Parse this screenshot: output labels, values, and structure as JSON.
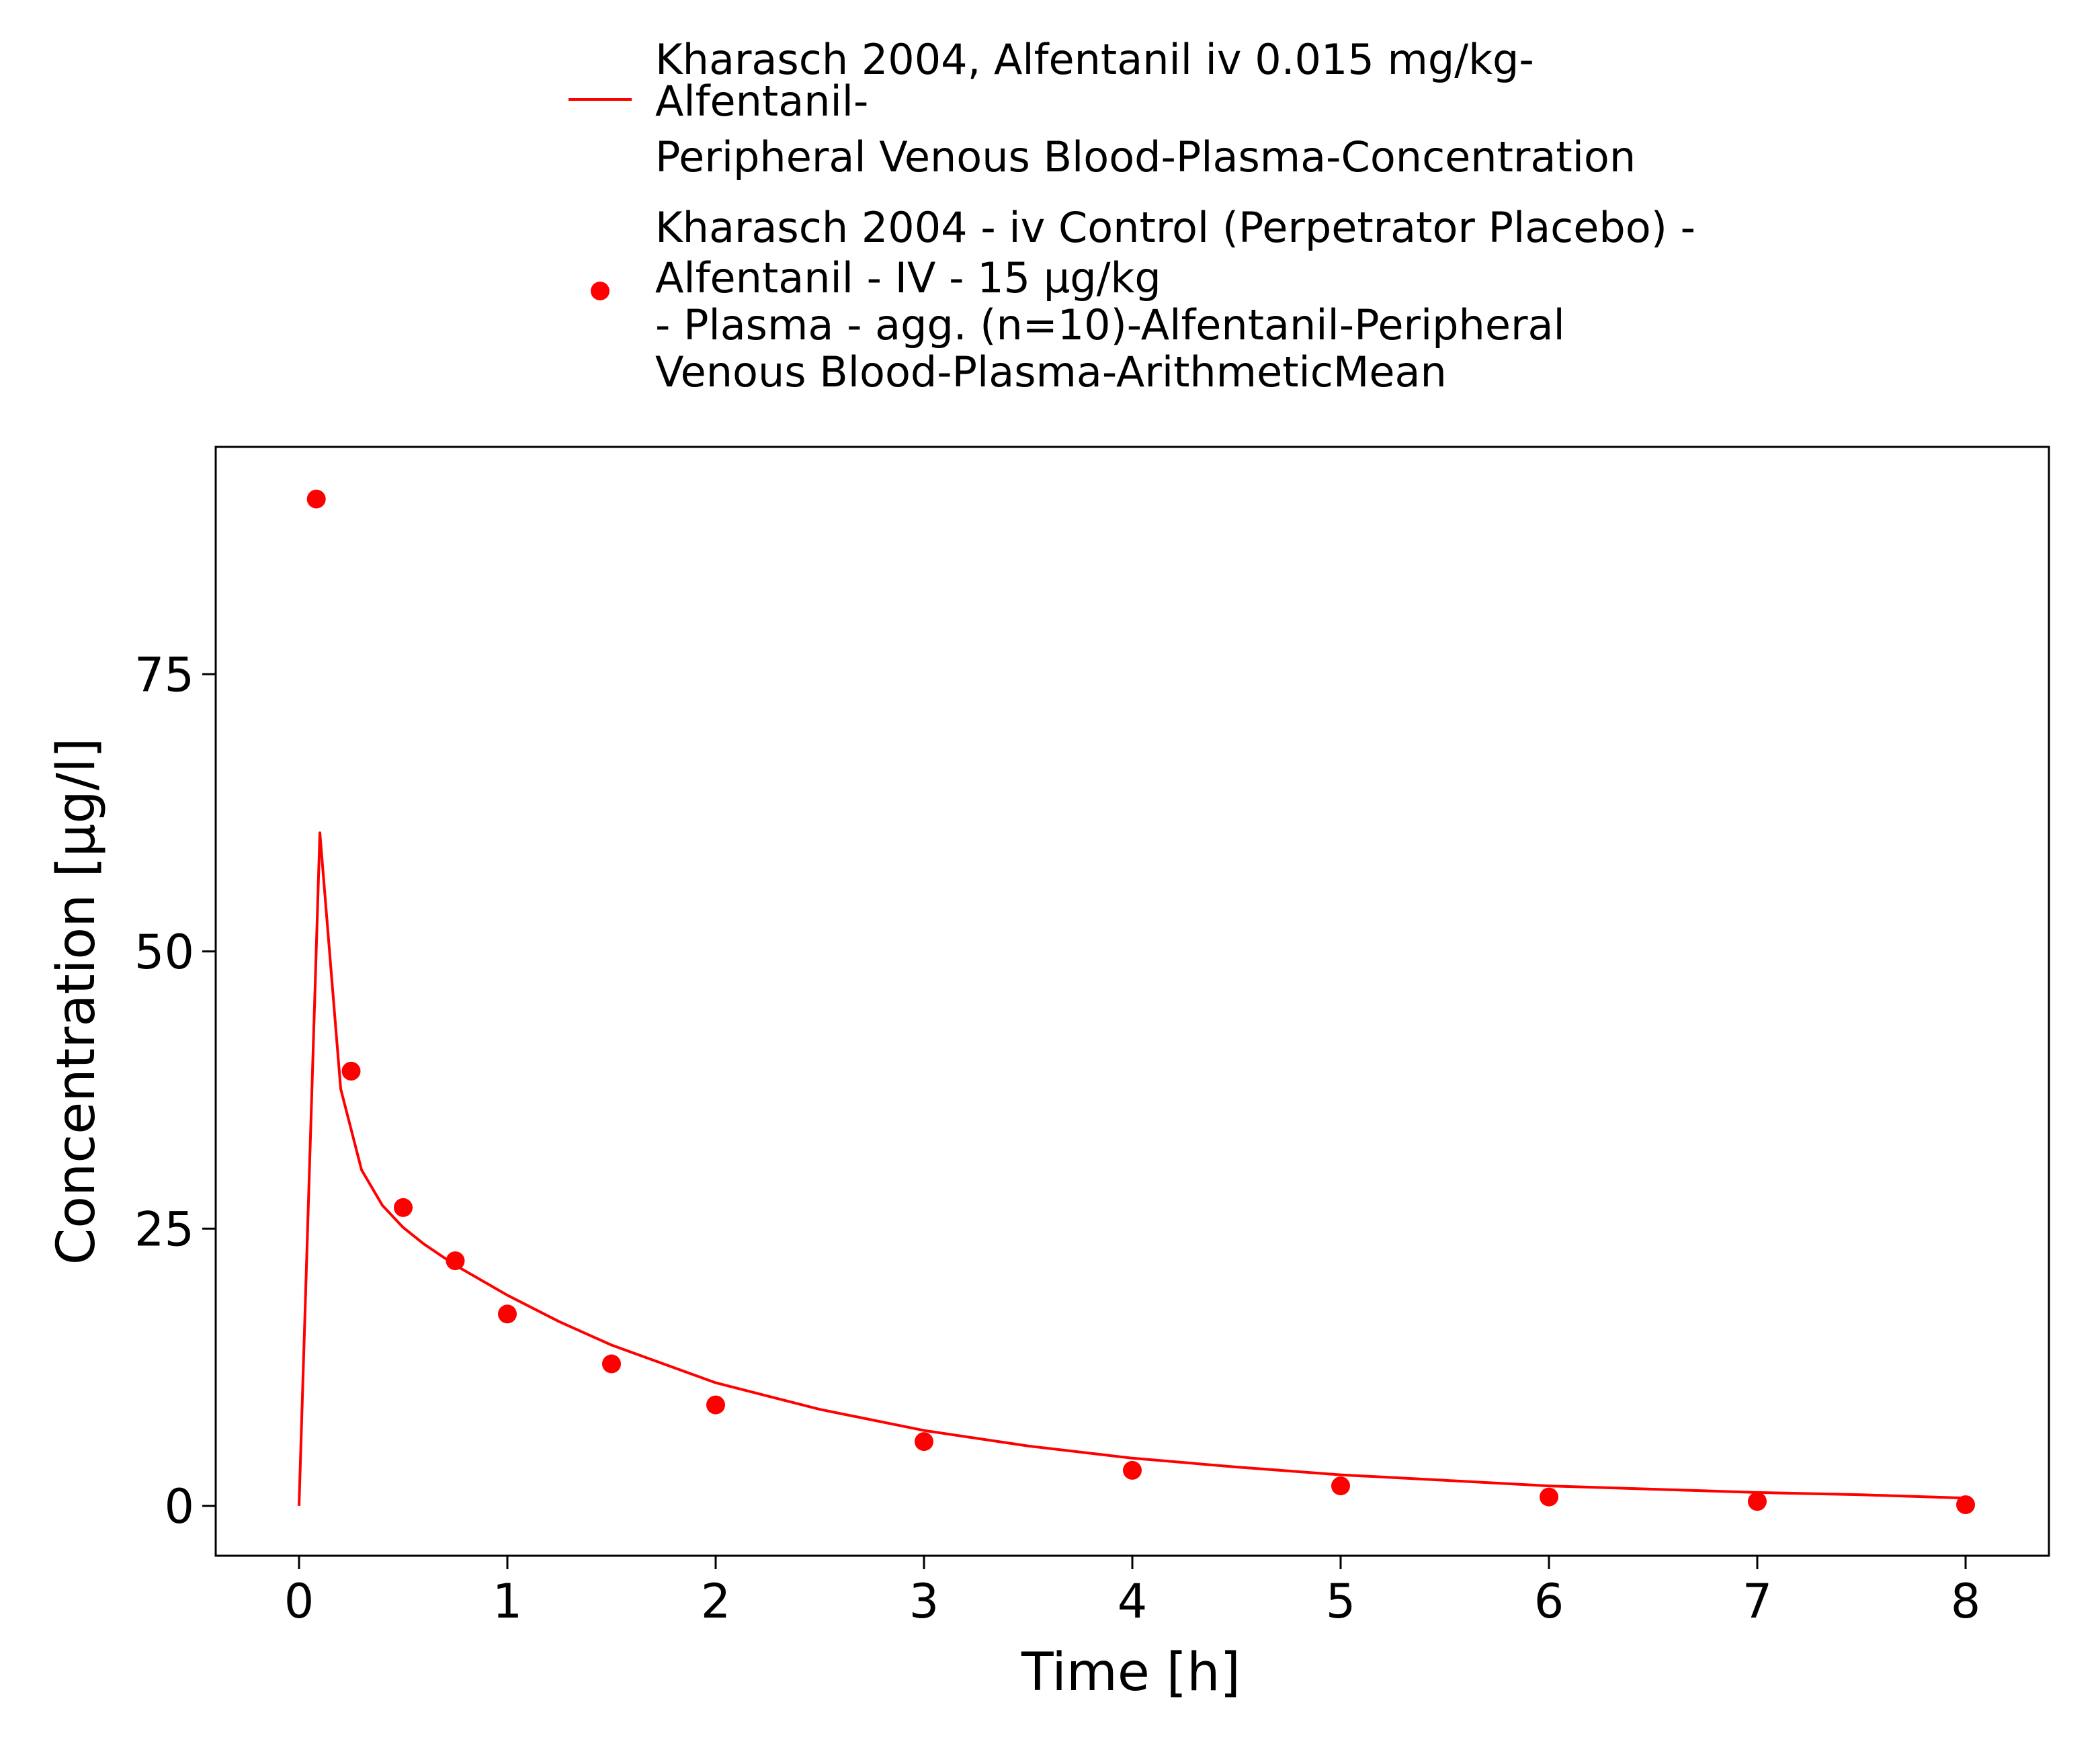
{
  "chart_data": {
    "type": "line",
    "title": "",
    "xlabel": "Time [h]",
    "ylabel": "Concentration [µg/l]",
    "xlim": [
      -0.4,
      8.4
    ],
    "ylim": [
      -4.5,
      95.5
    ],
    "x_ticks": [
      0,
      1,
      2,
      3,
      4,
      5,
      6,
      7,
      8
    ],
    "y_ticks": [
      0,
      25,
      50,
      75
    ],
    "grid": false,
    "legend_position": "top",
    "colors": {
      "series": "#ff0000"
    },
    "series": [
      {
        "name_lines": [
          "Kharasch 2004, Alfentanil iv 0.015 mg/kg-",
          "Alfentanil-",
          "Peripheral Venous Blood-Plasma-Concentration"
        ],
        "kind": "line",
        "x": [
          0,
          0.1,
          0.2,
          0.3,
          0.4,
          0.5,
          0.6,
          0.75,
          1.0,
          1.25,
          1.5,
          2.0,
          2.5,
          3.0,
          3.5,
          4.0,
          4.5,
          5.0,
          5.5,
          6.0,
          6.5,
          7.0,
          7.5,
          8.0
        ],
        "y": [
          0,
          60.7,
          37.6,
          30.3,
          27.1,
          25.1,
          23.6,
          21.7,
          19.0,
          16.6,
          14.5,
          11.1,
          8.7,
          6.8,
          5.4,
          4.3,
          3.5,
          2.8,
          2.3,
          1.8,
          1.5,
          1.2,
          1.0,
          0.7
        ]
      },
      {
        "name_lines": [
          "Kharasch 2004 - iv Control (Perpetrator Placebo) -",
          "Alfentanil - IV - 15 µg/kg",
          "- Plasma - agg. (n=10)-Alfentanil-Peripheral",
          "Venous Blood-Plasma-ArithmeticMean"
        ],
        "kind": "scatter",
        "x": [
          0.083,
          0.25,
          0.5,
          0.75,
          1.0,
          1.5,
          2.0,
          3.0,
          4.0,
          5.0,
          6.0,
          7.0,
          8.0
        ],
        "y": [
          90.8,
          39.2,
          26.9,
          22.1,
          17.3,
          12.8,
          9.1,
          5.8,
          3.2,
          1.8,
          0.8,
          0.4,
          0.1
        ]
      }
    ]
  }
}
